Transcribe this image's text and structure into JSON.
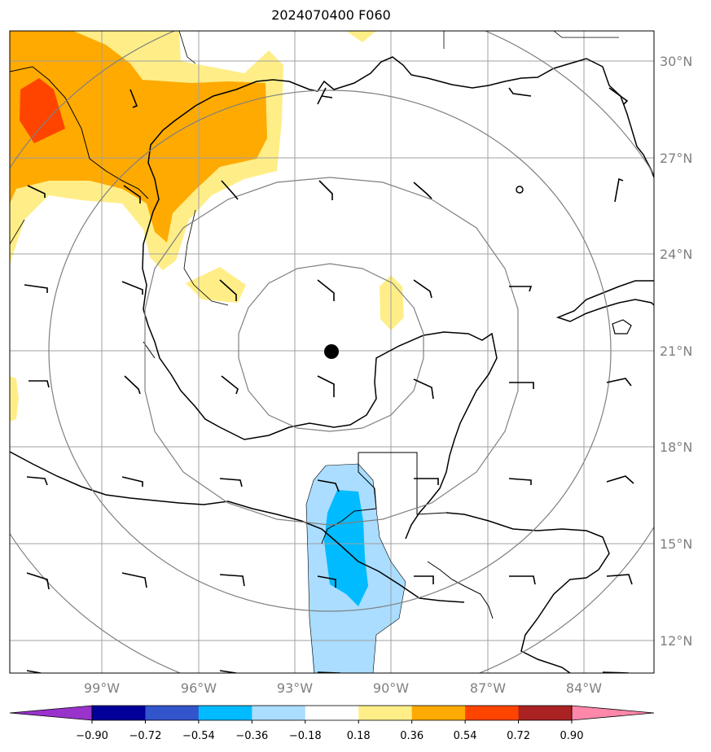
{
  "title": "2024070400 F060",
  "lat_labels": [
    "30°N",
    "27°N",
    "24°N",
    "21°N",
    "18°N",
    "15°N",
    "12°N"
  ],
  "lon_labels": [
    "99°W",
    "96°W",
    "93°W",
    "90°W",
    "87°W",
    "84°W"
  ],
  "colorbar": {
    "tick_labels": [
      "−0.90",
      "−0.72",
      "−0.54",
      "−0.36",
      "−0.18",
      "0.18",
      "0.36",
      "0.54",
      "0.72",
      "0.90"
    ],
    "colors": [
      "#9933cc",
      "#000099",
      "#3355cc",
      "#00bbff",
      "#aaddff",
      "#ffffff",
      "#ffee88",
      "#ffaa00",
      "#ff4400",
      "#aa2222",
      "#ff88aa"
    ]
  },
  "colors": {
    "grid": "#a0a0a0",
    "range_rings": "#808080",
    "coast": "#000000",
    "storm_center": "#000000"
  }
}
